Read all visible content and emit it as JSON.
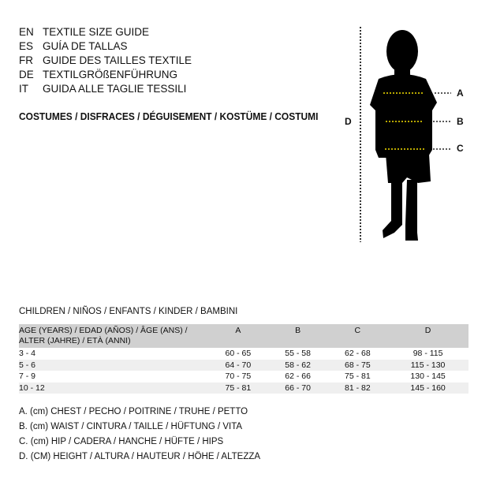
{
  "languages": [
    {
      "code": "EN",
      "text": "TEXTILE SIZE GUIDE"
    },
    {
      "code": "ES",
      "text": "GUÍA DE TALLAS"
    },
    {
      "code": "FR",
      "text": "GUIDE DES TAILLES TEXTILE"
    },
    {
      "code": "DE",
      "text": "TEXTILGRÖßENFÜHRUNG"
    },
    {
      "code": "IT",
      "text": "GUIDA ALLE TAGLIE TESSILI"
    }
  ],
  "title": "COSTUMES / DISFRACES / DÉGUISEMENT / KOSTÜME / COSTUMI",
  "figure": {
    "labels": {
      "a": "A",
      "b": "B",
      "c": "C",
      "d": "D"
    },
    "measure_line_color": "#f5e000"
  },
  "table": {
    "subtitle": "CHILDREN / NIÑOS / ENFANTS / KINDER / BAMBINI",
    "header": {
      "age_line1": "AGE (YEARS) / EDAD (AÑOS) / ÂGE (ANS) /",
      "age_line2": "ALTER (JAHRE) / ETÀ (ANNI)",
      "a": "A",
      "b": "B",
      "c": "C",
      "d": "D"
    },
    "rows": [
      [
        "3 - 4",
        "60 - 65",
        "55 - 58",
        "62 - 68",
        "98 - 115"
      ],
      [
        "5 - 6",
        "64 - 70",
        "58 - 62",
        "68 - 75",
        "115 - 130"
      ],
      [
        "7 - 9",
        "70 - 75",
        "62 - 66",
        "75 - 81",
        "130 - 145"
      ],
      [
        "10 - 12",
        "75 - 81",
        "66 - 70",
        "81 - 82",
        "145 - 160"
      ]
    ]
  },
  "notes": [
    "A. (cm) CHEST / PECHO / POITRINE / TRUHE / PETTO",
    "B. (cm) WAIST / CINTURA / TAILLE / HÜFTUNG / VITA",
    "C. (cm) HIP / CADERA / HANCHE / HÜFTE / HIPS",
    "D. (CM) HEIGHT / ALTURA / HAUTEUR / HÖHE / ALTEZZA"
  ]
}
